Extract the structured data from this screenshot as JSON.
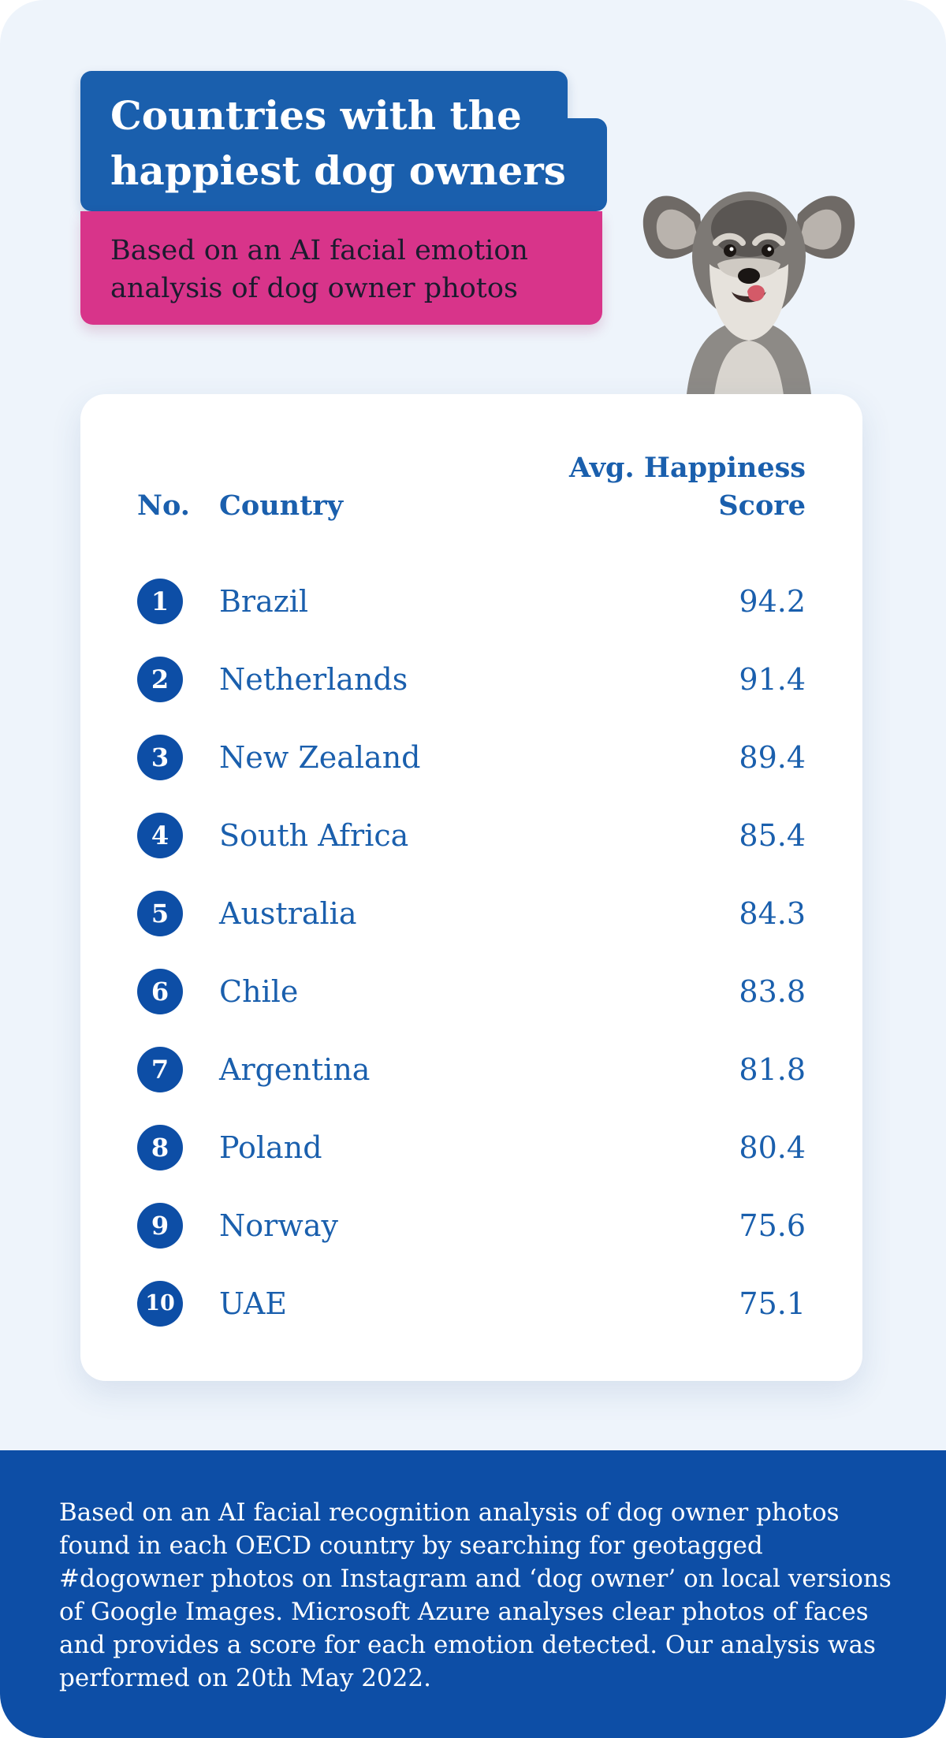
{
  "header": {
    "title": "Countries with the happiest dog owners",
    "subtitle": "Based on an AI facial emotion analysis of dog owner photos"
  },
  "table": {
    "col_no": "No.",
    "col_country": "Country",
    "col_score": "Avg. Happiness Score"
  },
  "chart_data": {
    "type": "table",
    "title": "Countries with the happiest dog owners",
    "subtitle": "Based on an AI facial emotion analysis of dog owner photos",
    "columns": [
      "No.",
      "Country",
      "Avg. Happiness Score"
    ],
    "rows": [
      {
        "rank": "1",
        "country": "Brazil",
        "score": "94.2"
      },
      {
        "rank": "2",
        "country": "Netherlands",
        "score": "91.4"
      },
      {
        "rank": "3",
        "country": "New Zealand",
        "score": "89.4"
      },
      {
        "rank": "4",
        "country": "South Africa",
        "score": "85.4"
      },
      {
        "rank": "5",
        "country": "Australia",
        "score": "84.3"
      },
      {
        "rank": "6",
        "country": "Chile",
        "score": "83.8"
      },
      {
        "rank": "7",
        "country": "Argentina",
        "score": "81.8"
      },
      {
        "rank": "8",
        "country": "Poland",
        "score": "80.4"
      },
      {
        "rank": "9",
        "country": "Norway",
        "score": "75.6"
      },
      {
        "rank": "10",
        "country": "UAE",
        "score": "75.1"
      }
    ]
  },
  "footer": {
    "note": "Based on an AI facial recognition analysis of dog owner photos found in each OECD country by searching for geotagged #dogowner photos on Instagram and ‘dog owner’ on local versions of Google Images. Microsoft Azure analyses clear photos of faces and provides a score for each emotion detected. Our analysis was performed on 20th May 2022."
  },
  "colors": {
    "primary_blue": "#1a5fad",
    "badge_blue": "#0d4ea6",
    "accent_pink": "#d8348a",
    "background": "#eef4fb"
  },
  "icons": {
    "dog": "schnauzer-dog-photo"
  }
}
